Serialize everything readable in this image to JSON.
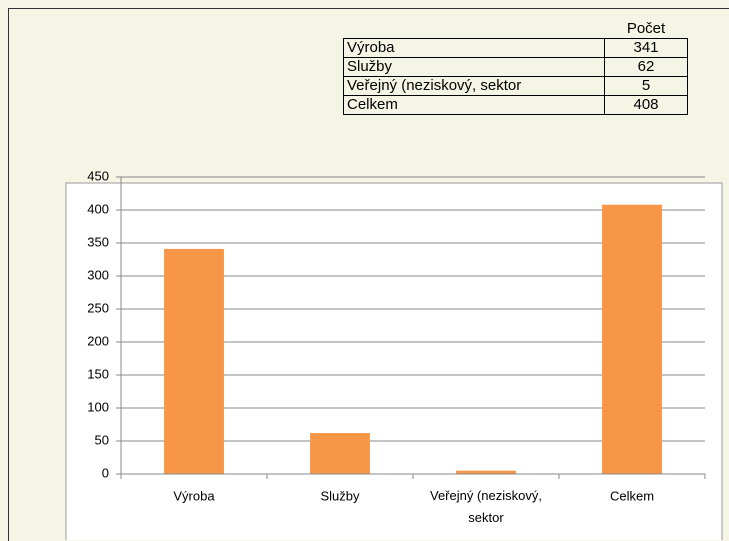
{
  "table": {
    "header": "Počet",
    "rows": [
      [
        "Výroba",
        341
      ],
      [
        "Služby",
        62
      ],
      [
        "Veřejný (neziskový, sektor",
        5
      ],
      [
        "Celkem",
        408
      ]
    ]
  },
  "chart_data": {
    "type": "bar",
    "categories": [
      "Výroba",
      "Služby",
      "Veřejný (neziskový, sektor",
      "Celkem"
    ],
    "values": [
      341,
      62,
      5,
      408
    ],
    "color": "#f79646",
    "ylim": [
      0,
      450
    ],
    "yticks": [
      0,
      50,
      100,
      150,
      200,
      250,
      300,
      350,
      400,
      450
    ],
    "grid": true
  }
}
